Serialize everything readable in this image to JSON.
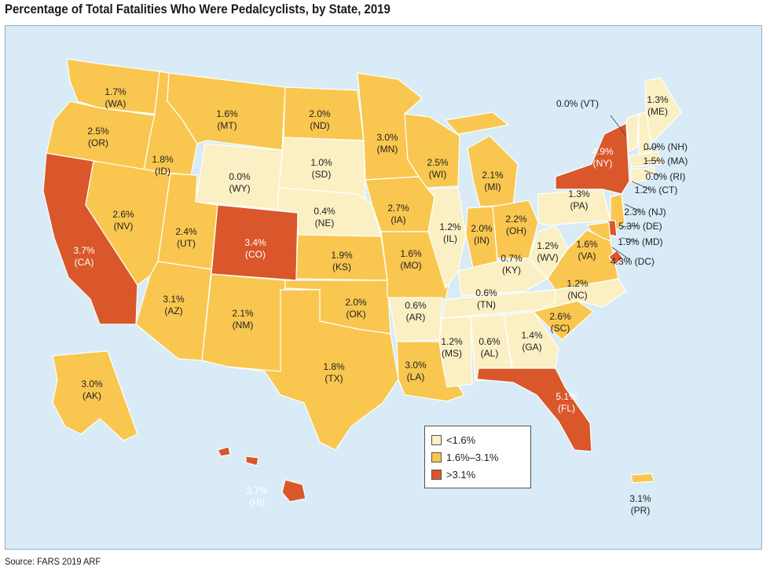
{
  "title": "Percentage of Total Fatalities Who Were Pedalcyclists, by State, 2019",
  "source": "Source: FARS 2019 ARF",
  "colors": {
    "low": "#fbf0c3",
    "mid": "#f9c74f",
    "high": "#d9572a",
    "water": "#d8ebf6"
  },
  "legend": [
    {
      "label": "<1.6%",
      "class": "low"
    },
    {
      "label": "1.6%–3.1%",
      "class": "mid"
    },
    {
      "label": ">3.1%",
      "class": "high"
    }
  ],
  "states": [
    {
      "abbr": "WA",
      "pct": "1.7%",
      "code": "(WA)",
      "class": "mid"
    },
    {
      "abbr": "OR",
      "pct": "2.5%",
      "code": "(OR)",
      "class": "mid"
    },
    {
      "abbr": "CA",
      "pct": "3.7%",
      "code": "(CA)",
      "class": "high"
    },
    {
      "abbr": "ID",
      "pct": "1.8%",
      "code": "(ID)",
      "class": "mid"
    },
    {
      "abbr": "NV",
      "pct": "2.6%",
      "code": "(NV)",
      "class": "mid"
    },
    {
      "abbr": "MT",
      "pct": "1.6%",
      "code": "(MT)",
      "class": "mid"
    },
    {
      "abbr": "WY",
      "pct": "0.0%",
      "code": "(WY)",
      "class": "low"
    },
    {
      "abbr": "UT",
      "pct": "2.4%",
      "code": "(UT)",
      "class": "mid"
    },
    {
      "abbr": "AZ",
      "pct": "3.1%",
      "code": "(AZ)",
      "class": "mid"
    },
    {
      "abbr": "CO",
      "pct": "3.4%",
      "code": "(CO)",
      "class": "high"
    },
    {
      "abbr": "NM",
      "pct": "2.1%",
      "code": "(NM)",
      "class": "mid"
    },
    {
      "abbr": "ND",
      "pct": "2.0%",
      "code": "(ND)",
      "class": "mid"
    },
    {
      "abbr": "SD",
      "pct": "1.0%",
      "code": "(SD)",
      "class": "low"
    },
    {
      "abbr": "NE",
      "pct": "0.4%",
      "code": "(NE)",
      "class": "low"
    },
    {
      "abbr": "KS",
      "pct": "1.9%",
      "code": "(KS)",
      "class": "mid"
    },
    {
      "abbr": "OK",
      "pct": "2.0%",
      "code": "(OK)",
      "class": "mid"
    },
    {
      "abbr": "TX",
      "pct": "1.8%",
      "code": "(TX)",
      "class": "mid"
    },
    {
      "abbr": "MN",
      "pct": "3.0%",
      "code": "(MN)",
      "class": "mid"
    },
    {
      "abbr": "IA",
      "pct": "2.7%",
      "code": "(IA)",
      "class": "mid"
    },
    {
      "abbr": "MO",
      "pct": "1.6%",
      "code": "(MO)",
      "class": "mid"
    },
    {
      "abbr": "AR",
      "pct": "0.6%",
      "code": "(AR)",
      "class": "low"
    },
    {
      "abbr": "LA",
      "pct": "3.0%",
      "code": "(LA)",
      "class": "mid"
    },
    {
      "abbr": "WI",
      "pct": "2.5%",
      "code": "(WI)",
      "class": "mid"
    },
    {
      "abbr": "IL",
      "pct": "1.2%",
      "code": "(IL)",
      "class": "low"
    },
    {
      "abbr": "MI",
      "pct": "2.1%",
      "code": "(MI)",
      "class": "mid"
    },
    {
      "abbr": "IN",
      "pct": "2.0%",
      "code": "(IN)",
      "class": "mid"
    },
    {
      "abbr": "OH",
      "pct": "2.2%",
      "code": "(OH)",
      "class": "mid"
    },
    {
      "abbr": "KY",
      "pct": "0.7%",
      "code": "(KY)",
      "class": "low"
    },
    {
      "abbr": "TN",
      "pct": "0.6%",
      "code": "(TN)",
      "class": "low"
    },
    {
      "abbr": "MS",
      "pct": "1.2%",
      "code": "(MS)",
      "class": "low"
    },
    {
      "abbr": "AL",
      "pct": "0.6%",
      "code": "(AL)",
      "class": "low"
    },
    {
      "abbr": "GA",
      "pct": "1.4%",
      "code": "(GA)",
      "class": "low"
    },
    {
      "abbr": "FL",
      "pct": "5.1%",
      "code": "(FL)",
      "class": "high"
    },
    {
      "abbr": "SC",
      "pct": "2.6%",
      "code": "(SC)",
      "class": "mid"
    },
    {
      "abbr": "NC",
      "pct": "1.2%",
      "code": "(NC)",
      "class": "low"
    },
    {
      "abbr": "VA",
      "pct": "1.6%",
      "code": "(VA)",
      "class": "mid"
    },
    {
      "abbr": "WV",
      "pct": "1.2%",
      "code": "(WV)",
      "class": "low"
    },
    {
      "abbr": "PA",
      "pct": "1.3%",
      "code": "(PA)",
      "class": "low"
    },
    {
      "abbr": "NY",
      "pct": "4.9%",
      "code": "(NY)",
      "class": "high"
    },
    {
      "abbr": "VT",
      "pct": "0.0%",
      "code": "(VT)",
      "class": "low"
    },
    {
      "abbr": "ME",
      "pct": "1.3%",
      "code": "(ME)",
      "class": "low"
    },
    {
      "abbr": "NH",
      "pct": "0.0%",
      "code": "(NH)",
      "class": "low"
    },
    {
      "abbr": "MA",
      "pct": "1.5%",
      "code": "(MA)",
      "class": "low"
    },
    {
      "abbr": "RI",
      "pct": "0.0%",
      "code": "(RI)",
      "class": "low"
    },
    {
      "abbr": "CT",
      "pct": "1.2%",
      "code": "(CT)",
      "class": "low"
    },
    {
      "abbr": "NJ",
      "pct": "2.3%",
      "code": "(NJ)",
      "class": "mid"
    },
    {
      "abbr": "DE",
      "pct": "5.3%",
      "code": "(DE)",
      "class": "high"
    },
    {
      "abbr": "MD",
      "pct": "1.9%",
      "code": "(MD)",
      "class": "mid"
    },
    {
      "abbr": "DC",
      "pct": "4.3%",
      "code": "(DC)",
      "class": "high"
    },
    {
      "abbr": "AK",
      "pct": "3.0%",
      "code": "(AK)",
      "class": "mid"
    },
    {
      "abbr": "HI",
      "pct": "3.7%",
      "code": "(HI)",
      "class": "high"
    },
    {
      "abbr": "PR",
      "pct": "3.1%",
      "code": "(PR)",
      "class": "mid"
    }
  ]
}
